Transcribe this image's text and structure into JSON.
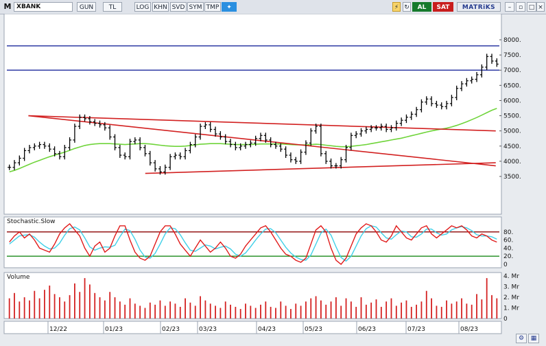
{
  "toolbar": {
    "logo": "M",
    "symbol": "XBANK",
    "buttons": [
      "GUN",
      "TL",
      "LOG",
      "KHN",
      "SVD",
      "SYM",
      "TMP"
    ],
    "al_label": "AL",
    "sat_label": "SAT",
    "brand": "MATRiKS"
  },
  "colors": {
    "price_bar": "#000000",
    "sma": "#6fd43a",
    "trendline": "#d22020",
    "h_line": "#1b2a9c",
    "stoch_k": "#e01a1a",
    "stoch_d": "#3fd0e8",
    "stoch_upper": "#8b0000",
    "stoch_lower": "#1a8a1a",
    "volume": "#d42020"
  },
  "chart_data": {
    "type": "bar",
    "price_axis": {
      "ticks": [
        "3500.",
        "4000.",
        "4500.",
        "5000.",
        "5500.",
        "6000.",
        "6500.",
        "7000.",
        "7500.",
        "8000."
      ],
      "ylim": [
        3200,
        8300
      ]
    },
    "date_labels": [
      "12/22",
      "01/23",
      "02/23",
      "03/23",
      "04/23",
      "05/23",
      "06/23",
      "07/23",
      "08/23"
    ],
    "horizontal_levels": [
      7800,
      7000
    ],
    "trendlines": [
      {
        "from": {
          "date": "2022-12-07",
          "value": 5500
        },
        "to": {
          "date": "2023-08-24",
          "value": 5000
        }
      },
      {
        "from": {
          "date": "2022-12-07",
          "value": 5500
        },
        "to": {
          "date": "2023-08-24",
          "value": 3850
        }
      },
      {
        "from": {
          "date": "2023-02-10",
          "value": 3600
        },
        "to": {
          "date": "2023-08-24",
          "value": 3950
        }
      }
    ],
    "close_series": [
      3800,
      3950,
      4100,
      4350,
      4450,
      4500,
      4550,
      4500,
      4400,
      4250,
      4150,
      4450,
      4700,
      5150,
      5450,
      5400,
      5300,
      5250,
      5200,
      5100,
      4800,
      4450,
      4200,
      4150,
      4650,
      4700,
      4450,
      4250,
      3950,
      3750,
      3650,
      3800,
      4150,
      4200,
      4150,
      4350,
      4550,
      4800,
      5150,
      5200,
      5050,
      4900,
      4800,
      4650,
      4550,
      4450,
      4500,
      4550,
      4600,
      4750,
      4850,
      4700,
      4550,
      4500,
      4400,
      4200,
      4050,
      4000,
      4300,
      4600,
      5000,
      5150,
      4250,
      4000,
      3850,
      3850,
      4050,
      4450,
      4850,
      4900,
      5000,
      5050,
      5100,
      5100,
      5150,
      5050,
      5100,
      5250,
      5350,
      5450,
      5550,
      5700,
      5950,
      6050,
      5900,
      5850,
      5800,
      5900,
      6100,
      6400,
      6550,
      6650,
      6700,
      6850,
      7100,
      7450,
      7300,
      7200
    ],
    "sma_series": [
      3650,
      3700,
      3760,
      3830,
      3900,
      3970,
      4030,
      4090,
      4150,
      4200,
      4250,
      4300,
      4360,
      4420,
      4470,
      4520,
      4550,
      4570,
      4580,
      4580,
      4580,
      4570,
      4560,
      4550,
      4560,
      4570,
      4580,
      4580,
      4570,
      4550,
      4530,
      4510,
      4500,
      4490,
      4490,
      4500,
      4520,
      4540,
      4560,
      4570,
      4580,
      4580,
      4580,
      4570,
      4560,
      4550,
      4550,
      4550,
      4550,
      4560,
      4570,
      4570,
      4570,
      4570,
      4570,
      4560,
      4550,
      4540,
      4540,
      4540,
      4550,
      4560,
      4550,
      4530,
      4510,
      4490,
      4480,
      4480,
      4490,
      4510,
      4530,
      4550,
      4580,
      4610,
      4640,
      4670,
      4700,
      4730,
      4760,
      4800,
      4840,
      4880,
      4920,
      4960,
      5000,
      5030,
      5060,
      5090,
      5130,
      5180,
      5240,
      5300,
      5370,
      5440,
      5520,
      5600,
      5680,
      5740
    ],
    "stochastic": {
      "title": "Stochastic.Slow",
      "ticks": [
        "80.",
        "60.",
        "40.",
        "20.",
        "0"
      ],
      "upper": 80,
      "lower": 20,
      "k": [
        55,
        70,
        80,
        65,
        75,
        60,
        40,
        35,
        30,
        50,
        75,
        90,
        100,
        85,
        70,
        40,
        20,
        45,
        55,
        30,
        40,
        70,
        95,
        95,
        60,
        30,
        15,
        10,
        20,
        50,
        80,
        95,
        95,
        75,
        50,
        35,
        20,
        40,
        60,
        45,
        30,
        40,
        55,
        40,
        20,
        15,
        25,
        45,
        60,
        75,
        90,
        95,
        80,
        60,
        40,
        25,
        20,
        10,
        5,
        15,
        50,
        85,
        95,
        80,
        40,
        10,
        0,
        15,
        45,
        75,
        90,
        100,
        95,
        80,
        60,
        55,
        70,
        95,
        80,
        65,
        60,
        75,
        90,
        95,
        75,
        65,
        75,
        85,
        95,
        90,
        95,
        85,
        70,
        65,
        75,
        70,
        60,
        55
      ],
      "d": [
        50,
        60,
        70,
        72,
        73,
        67,
        55,
        45,
        38,
        40,
        52,
        72,
        88,
        92,
        85,
        65,
        43,
        35,
        40,
        43,
        42,
        47,
        68,
        87,
        83,
        62,
        35,
        18,
        15,
        27,
        50,
        75,
        90,
        88,
        73,
        53,
        35,
        32,
        40,
        48,
        45,
        38,
        42,
        45,
        38,
        25,
        20,
        28,
        43,
        60,
        75,
        87,
        88,
        78,
        60,
        42,
        28,
        18,
        12,
        10,
        23,
        50,
        77,
        87,
        72,
        43,
        17,
        8,
        20,
        45,
        70,
        88,
        95,
        92,
        78,
        65,
        62,
        73,
        82,
        80,
        68,
        67,
        75,
        87,
        87,
        78,
        72,
        75,
        85,
        90,
        93,
        90,
        83,
        73,
        70,
        70,
        68,
        62
      ]
    },
    "volume": {
      "title": "Volume",
      "ticks": [
        "4. Mr",
        "3. Mr",
        "2. Mr",
        "1. Mr",
        "0"
      ],
      "ylim": [
        0,
        4
      ],
      "values": [
        1.9,
        2.4,
        1.6,
        2.0,
        1.7,
        2.6,
        1.9,
        2.7,
        3.1,
        2.3,
        2.0,
        1.6,
        2.2,
        3.3,
        2.5,
        3.8,
        3.2,
        2.4,
        2.0,
        1.7,
        2.5,
        2.0,
        1.6,
        1.3,
        1.9,
        1.4,
        1.2,
        1.0,
        1.5,
        1.3,
        1.7,
        1.2,
        1.6,
        1.4,
        1.1,
        1.9,
        1.5,
        1.2,
        2.1,
        1.7,
        1.4,
        1.2,
        1.0,
        1.6,
        1.3,
        1.1,
        0.9,
        1.4,
        1.2,
        1.0,
        1.3,
        1.6,
        1.1,
        1.0,
        1.6,
        1.2,
        0.9,
        1.4,
        1.2,
        1.6,
        1.9,
        2.1,
        1.7,
        1.3,
        1.6,
        2.0,
        1.2,
        1.9,
        1.6,
        1.1,
        2.0,
        1.3,
        1.5,
        1.8,
        1.1,
        1.6,
        1.9,
        1.2,
        1.5,
        1.7,
        1.1,
        1.3,
        1.6,
        2.6,
        1.9,
        1.2,
        1.1,
        1.7,
        1.4,
        1.6,
        1.9,
        1.4,
        1.3,
        2.3,
        1.8,
        3.8,
        2.2,
        1.9
      ]
    }
  }
}
